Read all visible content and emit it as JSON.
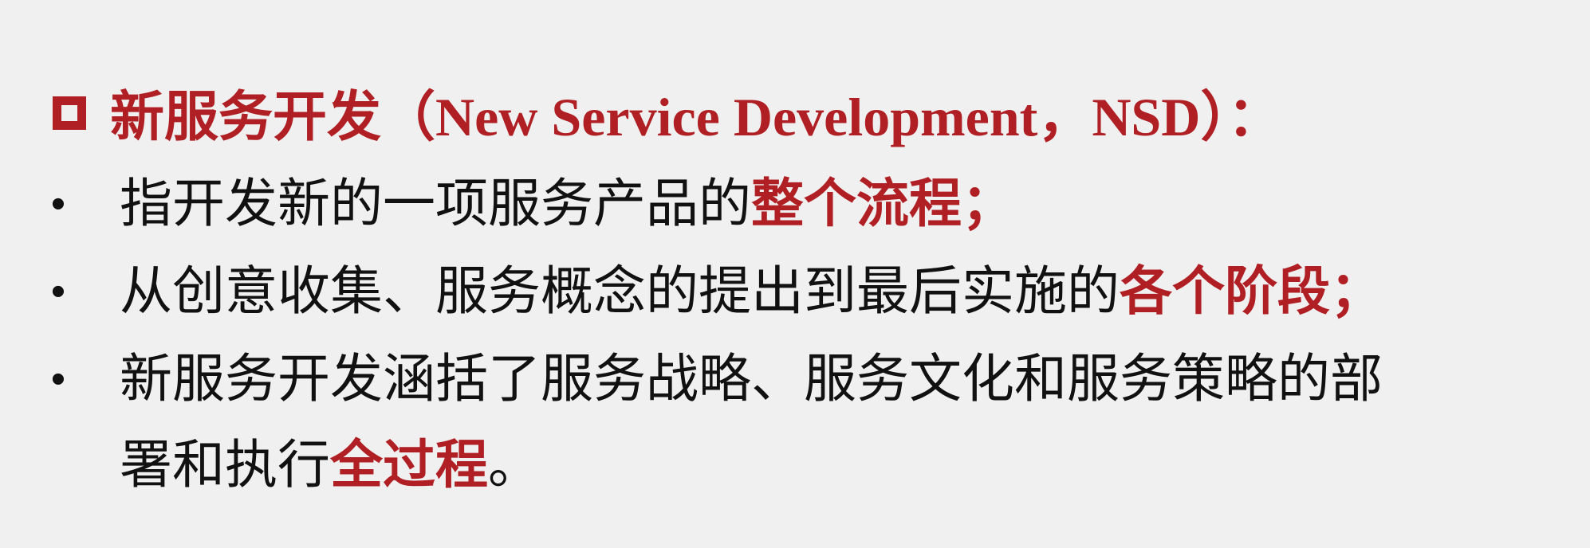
{
  "heading": {
    "icon": "hollow-square-icon",
    "title_zh": "新服务开发",
    "title_en": "（New Service Development，NSD）：",
    "color": "#b01f24"
  },
  "bullets": [
    {
      "marker": "•",
      "text": "指开发新的一项服务产品的",
      "highlight": "整个流程",
      "suffix": "；"
    },
    {
      "marker": "•",
      "text": "从创意收集、服务概念的提出到最后实施的",
      "highlight": "各个阶段",
      "suffix": "；"
    },
    {
      "marker": "•",
      "text_line1": "新服务开发涵括了服务战略、服务文化和服务策略的部",
      "text_line2": "署和执行",
      "highlight": "全过程",
      "suffix": "。"
    }
  ],
  "colors": {
    "background": "#f0f0f0",
    "accent": "#b01f24",
    "text": "#111111"
  }
}
